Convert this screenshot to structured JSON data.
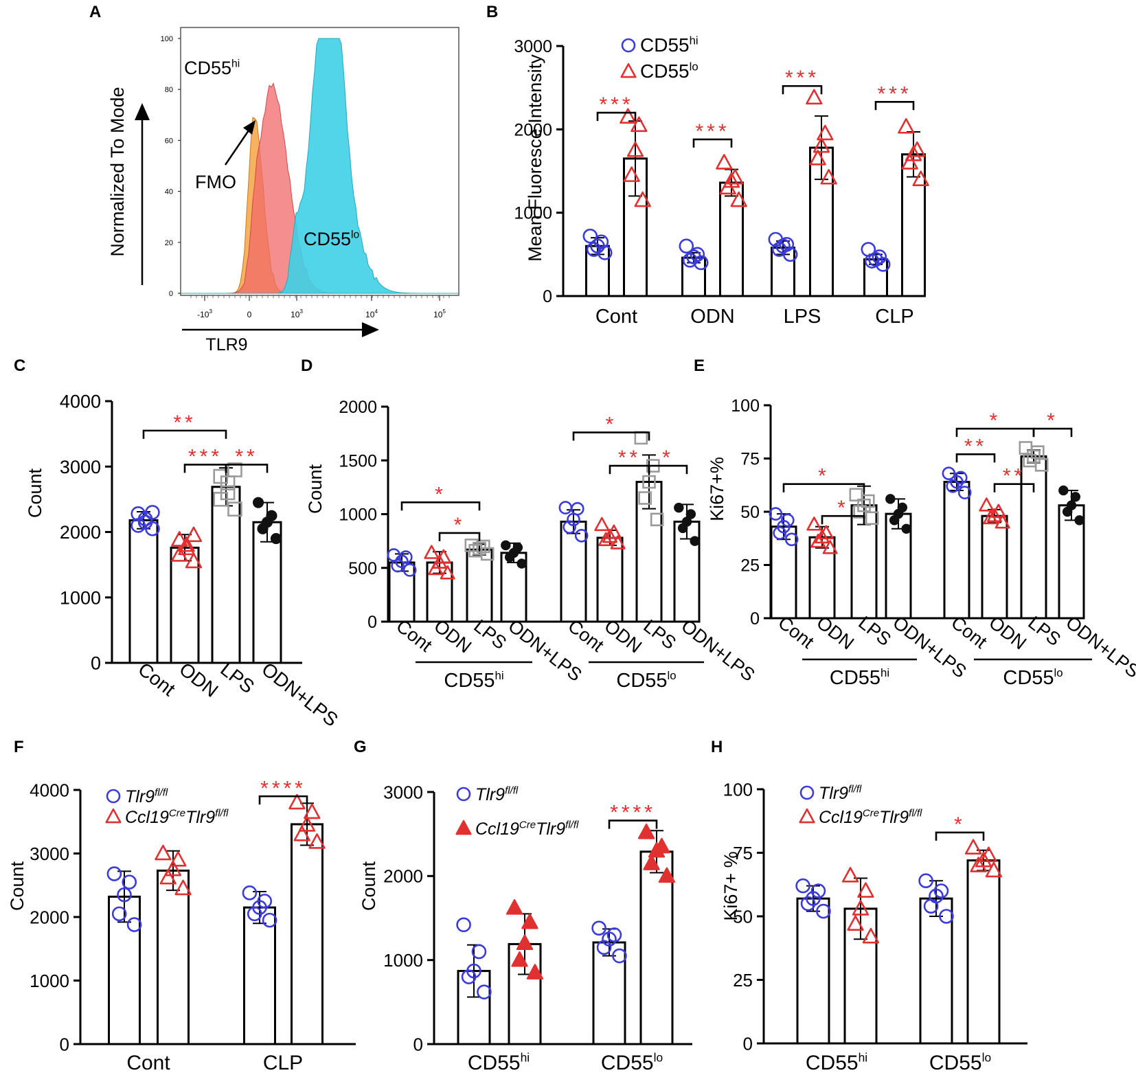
{
  "colors": {
    "blue": "#3b3bdb",
    "red": "#e03030",
    "gray": "#9a9a9a",
    "black": "#111111",
    "orange": "#f5a442",
    "salmon": "#f26a6a",
    "cyan": "#3fd0e6"
  },
  "chart_data": [
    {
      "id": "A",
      "panel_letter": "A",
      "type": "histogram",
      "ylabel": "Normalized To Mode",
      "xlabel": "TLR9",
      "yticks": [
        0,
        20,
        40,
        60,
        80,
        100
      ],
      "xtick_labels": [
        "-10",
        "0",
        "10",
        "10",
        "10"
      ],
      "xtick_sups": [
        "3",
        "",
        "3",
        "4",
        "5"
      ],
      "annotations": {
        "fmo": "FMO",
        "hi_main": "CD55",
        "hi_sup": "hi",
        "lo_main": "CD55",
        "lo_sup": "lo"
      },
      "series": [
        {
          "name": "FMO",
          "color": "#f5a442",
          "peak": 70
        },
        {
          "name": "CD55hi",
          "color": "#f26a6a",
          "peak": 82
        },
        {
          "name": "CD55lo",
          "color": "#3fd0e6",
          "peak": 100
        }
      ]
    },
    {
      "id": "B",
      "panel_letter": "B",
      "type": "bar",
      "ylabel": "Mean Fluoresce Intensity",
      "ylim": [
        0,
        3000
      ],
      "yticks": [
        0,
        1000,
        2000,
        3000
      ],
      "xlabels": [
        "Cont",
        "ODN",
        "LPS",
        "CLP"
      ],
      "rotate": false,
      "legend": [
        {
          "main": "CD55",
          "sup": "hi",
          "italic": false,
          "marker": "circle",
          "color": "#3b3bdb"
        },
        {
          "main": "CD55",
          "sup": "lo",
          "italic": false,
          "marker": "triangle",
          "color": "#e03030"
        }
      ],
      "bars": [
        {
          "mean": 600,
          "sd": 100,
          "marker": "circle",
          "color": "#3b3bdb",
          "points": [
            520,
            560,
            600,
            650,
            720
          ]
        },
        {
          "mean": 1650,
          "sd": 450,
          "marker": "triangle",
          "color": "#e03030",
          "points": [
            1150,
            1450,
            1750,
            2050,
            2150
          ]
        },
        {
          "mean": 460,
          "sd": 60,
          "marker": "circle",
          "color": "#3b3bdb",
          "points": [
            400,
            430,
            470,
            500,
            600
          ]
        },
        {
          "mean": 1360,
          "sd": 160,
          "marker": "triangle",
          "color": "#e03030",
          "points": [
            1150,
            1300,
            1380,
            1420,
            1600
          ]
        },
        {
          "mean": 580,
          "sd": 80,
          "marker": "circle",
          "color": "#3b3bdb",
          "points": [
            500,
            560,
            600,
            620,
            680
          ]
        },
        {
          "mean": 1780,
          "sd": 380,
          "marker": "triangle",
          "color": "#e03030",
          "points": [
            1420,
            1650,
            1800,
            1950,
            2380
          ]
        },
        {
          "mean": 440,
          "sd": 60,
          "marker": "circle",
          "color": "#3b3bdb",
          "points": [
            380,
            420,
            440,
            470,
            560
          ]
        },
        {
          "mean": 1700,
          "sd": 270,
          "marker": "triangle",
          "color": "#e03030",
          "points": [
            1400,
            1600,
            1700,
            1750,
            2030
          ]
        }
      ],
      "sig": [
        {
          "a": 0,
          "b": 1,
          "y": 2200,
          "stars": "***"
        },
        {
          "a": 2,
          "b": 3,
          "y": 1880,
          "stars": "***"
        },
        {
          "a": 4,
          "b": 5,
          "y": 2520,
          "stars": "***"
        },
        {
          "a": 6,
          "b": 7,
          "y": 2330,
          "stars": "***"
        }
      ]
    },
    {
      "id": "C",
      "panel_letter": "C",
      "type": "bar",
      "ylabel": "Count",
      "ylim": [
        0,
        4000
      ],
      "yticks": [
        0,
        1000,
        2000,
        3000,
        4000
      ],
      "xlabels": [
        "Cont",
        "ODN",
        "LPS",
        "ODN+LPS"
      ],
      "rotate": true,
      "bars": [
        {
          "mean": 2180,
          "sd": 130,
          "marker": "circle",
          "color": "#3b3bdb",
          "points": [
            2050,
            2100,
            2150,
            2200,
            2280,
            2300
          ]
        },
        {
          "mean": 1760,
          "sd": 200,
          "marker": "triangle",
          "color": "#e03030",
          "points": [
            1550,
            1650,
            1750,
            1800,
            1880,
            1950
          ]
        },
        {
          "mean": 2690,
          "sd": 290,
          "marker": "square",
          "color": "#9a9a9a",
          "points": [
            2350,
            2500,
            2600,
            2750,
            2850,
            2950
          ]
        },
        {
          "mean": 2150,
          "sd": 300,
          "marker": "dot",
          "color": "#111111",
          "points": [
            1900,
            2050,
            2150,
            2250,
            2450
          ]
        }
      ],
      "sig": [
        {
          "a": 0,
          "b": 2,
          "y": 3550,
          "stars": "**"
        },
        {
          "a": 1,
          "b": 2,
          "y": 3030,
          "stars": "***"
        },
        {
          "a": 2,
          "b": 3,
          "y": 3030,
          "stars": "**"
        }
      ]
    },
    {
      "id": "D",
      "panel_letter": "D",
      "type": "bar",
      "ylabel": "Count",
      "ylim": [
        0,
        2000
      ],
      "yticks": [
        0,
        500,
        1000,
        1500,
        2000
      ],
      "xlabels": [
        "Cont",
        "ODN",
        "LPS",
        "ODN+LPS",
        "Cont",
        "ODN",
        "LPS",
        "ODN+LPS"
      ],
      "rotate": true,
      "groups": [
        {
          "main": "CD55",
          "sup": "hi"
        },
        {
          "main": "CD55",
          "sup": "lo"
        }
      ],
      "bars": [
        {
          "mean": 550,
          "sd": 80,
          "marker": "circle",
          "color": "#3b3bdb",
          "points": [
            480,
            520,
            560,
            600,
            620
          ]
        },
        {
          "mean": 550,
          "sd": 100,
          "marker": "triangle",
          "color": "#e03030",
          "points": [
            450,
            490,
            550,
            600,
            640
          ]
        },
        {
          "mean": 670,
          "sd": 50,
          "marker": "square",
          "color": "#9a9a9a",
          "points": [
            630,
            660,
            680,
            700,
            710
          ]
        },
        {
          "mean": 640,
          "sd": 90,
          "marker": "dot",
          "color": "#111111",
          "points": [
            540,
            600,
            640,
            690,
            710
          ]
        },
        {
          "mean": 930,
          "sd": 110,
          "marker": "circle",
          "color": "#3b3bdb",
          "points": [
            800,
            880,
            950,
            1050,
            1060
          ]
        },
        {
          "mean": 780,
          "sd": 70,
          "marker": "triangle",
          "color": "#e03030",
          "points": [
            730,
            760,
            790,
            830,
            900
          ]
        },
        {
          "mean": 1300,
          "sd": 250,
          "marker": "square",
          "color": "#9a9a9a",
          "points": [
            950,
            1150,
            1300,
            1450,
            1710
          ]
        },
        {
          "mean": 930,
          "sd": 160,
          "marker": "dot",
          "color": "#111111",
          "points": [
            750,
            870,
            930,
            1000,
            1060
          ]
        }
      ],
      "sig": [
        {
          "a": 0,
          "b": 2,
          "y": 1110,
          "stars": "*"
        },
        {
          "a": 1,
          "b": 2,
          "y": 825,
          "stars": "*"
        },
        {
          "a": 4,
          "b": 6,
          "y": 1760,
          "stars": "*"
        },
        {
          "a": 5,
          "b": 6,
          "y": 1450,
          "stars": "**"
        },
        {
          "a": 6,
          "b": 7,
          "y": 1450,
          "stars": "*"
        }
      ]
    },
    {
      "id": "E",
      "panel_letter": "E",
      "type": "bar",
      "ylabel": "Ki67+%",
      "ylim": [
        0,
        100
      ],
      "yticks": [
        0,
        25,
        50,
        75,
        100
      ],
      "xlabels": [
        "Cont",
        "ODN",
        "LPS",
        "ODN+LPS",
        "Cont",
        "ODN",
        "LPS",
        "ODN+LPS"
      ],
      "rotate": true,
      "groups": [
        {
          "main": "CD55",
          "sup": "hi"
        },
        {
          "main": "CD55",
          "sup": "lo"
        }
      ],
      "bars": [
        {
          "mean": 43,
          "sd": 6,
          "marker": "circle",
          "color": "#3b3bdb",
          "points": [
            37,
            40,
            43,
            46,
            49
          ]
        },
        {
          "mean": 38,
          "sd": 5,
          "marker": "triangle",
          "color": "#e03030",
          "points": [
            33,
            36,
            38,
            40,
            44
          ]
        },
        {
          "mean": 53,
          "sd": 9,
          "marker": "square",
          "color": "#9a9a9a",
          "points": [
            47,
            50,
            53,
            55,
            58
          ]
        },
        {
          "mean": 49,
          "sd": 7,
          "marker": "dot",
          "color": "#111111",
          "points": [
            42,
            46,
            49,
            52,
            56
          ]
        },
        {
          "mean": 64,
          "sd": 4,
          "marker": "circle",
          "color": "#3b3bdb",
          "points": [
            59,
            62,
            64,
            66,
            68
          ]
        },
        {
          "mean": 48,
          "sd": 3,
          "marker": "triangle",
          "color": "#e03030",
          "points": [
            45,
            47,
            48,
            50,
            53
          ]
        },
        {
          "mean": 76,
          "sd": 3,
          "marker": "square",
          "color": "#9a9a9a",
          "points": [
            72,
            74,
            76,
            78,
            80
          ]
        },
        {
          "mean": 53,
          "sd": 7,
          "marker": "dot",
          "color": "#111111",
          "points": [
            46,
            50,
            53,
            57,
            60
          ]
        }
      ],
      "sig": [
        {
          "a": 0,
          "b": 2,
          "y": 63,
          "stars": "*"
        },
        {
          "a": 1,
          "b": 2,
          "y": 48,
          "stars": "*"
        },
        {
          "a": 4,
          "b": 6,
          "y": 89,
          "stars": "*"
        },
        {
          "a": 4,
          "b": 5,
          "y": 77,
          "stars": "**"
        },
        {
          "a": 5,
          "b": 6,
          "y": 63,
          "stars": "**"
        },
        {
          "a": 6,
          "b": 7,
          "y": 89,
          "stars": "*"
        }
      ]
    },
    {
      "id": "F",
      "panel_letter": "F",
      "type": "bar",
      "ylabel": "Count",
      "ylim": [
        0,
        4000
      ],
      "yticks": [
        0,
        1000,
        2000,
        3000,
        4000
      ],
      "xlabels": [
        "Cont",
        "CLP"
      ],
      "rotate": false,
      "legend": [
        {
          "main": "Tlr9",
          "sup": "fl/fl",
          "italic": true,
          "marker": "circle",
          "color": "#3b3bdb"
        },
        {
          "main": "Ccl19",
          "sup": "Cre",
          "main2": "Tlr9",
          "sup2": "fl/fl",
          "italic": true,
          "marker": "triangle",
          "color": "#e03030"
        }
      ],
      "bars": [
        {
          "mean": 2320,
          "sd": 400,
          "marker": "circle",
          "color": "#3b3bdb",
          "points": [
            1880,
            2050,
            2350,
            2550,
            2680
          ]
        },
        {
          "mean": 2730,
          "sd": 310,
          "marker": "triangle",
          "color": "#e03030",
          "points": [
            2450,
            2620,
            2750,
            2900,
            3000
          ]
        },
        {
          "mean": 2150,
          "sd": 250,
          "marker": "circle",
          "color": "#3b3bdb",
          "points": [
            1950,
            2050,
            2150,
            2250,
            2380
          ]
        },
        {
          "mean": 3460,
          "sd": 330,
          "marker": "triangle",
          "color": "#e03030",
          "points": [
            3180,
            3300,
            3450,
            3650,
            3800
          ]
        }
      ],
      "sig": [
        {
          "a": 2,
          "b": 3,
          "y": 3900,
          "stars": "****"
        }
      ]
    },
    {
      "id": "G",
      "panel_letter": "G",
      "type": "bar",
      "ylabel": "Count",
      "ylim": [
        0,
        3000
      ],
      "yticks": [
        0,
        1000,
        2000,
        3000
      ],
      "xlabels": [
        {
          "main": "CD55",
          "sup": "hi"
        },
        {
          "main": "CD55",
          "sup": "lo"
        }
      ],
      "rotate": false,
      "legend": [
        {
          "main": "Tlr9",
          "sup": "fl/fl",
          "italic": true,
          "marker": "circle",
          "color": "#3b3bdb"
        },
        {
          "main": "Ccl19",
          "sup": "Cre",
          "main2": "Tlr9",
          "sup2": "fl/fl",
          "italic": true,
          "marker": "solidtriangle",
          "color": "#e03030"
        }
      ],
      "bars": [
        {
          "mean": 870,
          "sd": 310,
          "marker": "circle",
          "color": "#3b3bdb",
          "points": [
            620,
            800,
            870,
            1100,
            1420
          ]
        },
        {
          "mean": 1190,
          "sd": 360,
          "marker": "solidtriangle",
          "color": "#e03030",
          "points": [
            850,
            1000,
            1200,
            1450,
            1620
          ]
        },
        {
          "mean": 1210,
          "sd": 160,
          "marker": "circle",
          "color": "#3b3bdb",
          "points": [
            1050,
            1150,
            1250,
            1300,
            1380
          ]
        },
        {
          "mean": 2290,
          "sd": 250,
          "marker": "solidtriangle",
          "color": "#e03030",
          "points": [
            2000,
            2150,
            2300,
            2350,
            2520
          ]
        }
      ],
      "sig": [
        {
          "a": 2,
          "b": 3,
          "y": 2660,
          "stars": "****"
        }
      ]
    },
    {
      "id": "H",
      "panel_letter": "H",
      "type": "bar",
      "ylabel": "Ki67+ %",
      "ylim": [
        0,
        100
      ],
      "yticks": [
        0,
        25,
        50,
        75,
        100
      ],
      "xlabels": [
        {
          "main": "CD55",
          "sup": "hi"
        },
        {
          "main": "CD55",
          "sup": "lo"
        }
      ],
      "rotate": false,
      "legend": [
        {
          "main": "Tlr9",
          "sup": "fl/fl",
          "italic": true,
          "marker": "circle",
          "color": "#3b3bdb"
        },
        {
          "main": "Ccl19",
          "sup": "Cre",
          "main2": "Tlr9",
          "sup2": "fl/fl",
          "italic": true,
          "marker": "triangle",
          "color": "#e03030"
        }
      ],
      "bars": [
        {
          "mean": 57,
          "sd": 5,
          "marker": "circle",
          "color": "#3b3bdb",
          "points": [
            52,
            55,
            57,
            60,
            62
          ]
        },
        {
          "mean": 53,
          "sd": 12,
          "marker": "triangle",
          "color": "#e03030",
          "points": [
            42,
            47,
            53,
            60,
            66
          ]
        },
        {
          "mean": 57,
          "sd": 7,
          "marker": "circle",
          "color": "#3b3bdb",
          "points": [
            50,
            54,
            58,
            60,
            64
          ]
        },
        {
          "mean": 72,
          "sd": 4,
          "marker": "triangle",
          "color": "#e03030",
          "points": [
            68,
            70,
            72,
            74,
            77
          ]
        }
      ],
      "sig": [
        {
          "a": 2,
          "b": 3,
          "y": 83,
          "stars": "*"
        }
      ]
    }
  ]
}
